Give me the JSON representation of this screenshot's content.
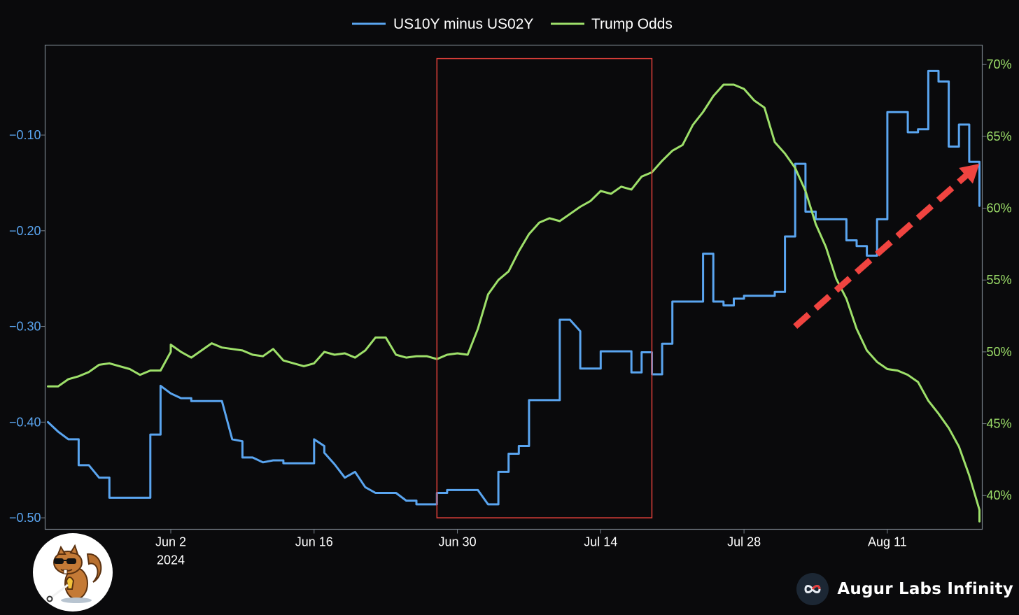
{
  "chart_data": {
    "type": "line",
    "title": "",
    "xlabel": "",
    "x_ticks": [
      {
        "date": "2024-06-02",
        "label": "Jun 2",
        "sublabel": "2024"
      },
      {
        "date": "2024-06-16",
        "label": "Jun 16",
        "sublabel": ""
      },
      {
        "date": "2024-06-30",
        "label": "Jun 30",
        "sublabel": ""
      },
      {
        "date": "2024-07-14",
        "label": "Jul 14",
        "sublabel": ""
      },
      {
        "date": "2024-07-28",
        "label": "Jul 28",
        "sublabel": ""
      },
      {
        "date": "2024-08-11",
        "label": "Aug 11",
        "sublabel": ""
      }
    ],
    "xlim": [
      "2024-05-21",
      "2024-08-20"
    ],
    "y_left": {
      "ticks": [
        -0.1,
        -0.2,
        -0.3,
        -0.4,
        -0.5
      ],
      "tick_labels": [
        "−0.10",
        "−0.20",
        "−0.30",
        "−0.40",
        "−0.50"
      ],
      "range": [
        -0.512,
        -0.006
      ],
      "color": "#5aa5f0"
    },
    "y_right": {
      "ticks": [
        40,
        45,
        50,
        55,
        60,
        65,
        70
      ],
      "tick_labels": [
        "40%",
        "45%",
        "50%",
        "55%",
        "60%",
        "65%",
        "70%"
      ],
      "range": [
        37.65,
        71.35
      ],
      "color": "#9ee06a"
    },
    "legend": {
      "placement": "top-center"
    },
    "grid": false,
    "series": [
      {
        "name": "US10Y minus US02Y",
        "axis": "left",
        "color": "#5aa5f0",
        "points": [
          [
            "2024-05-21",
            -0.4
          ],
          [
            "2024-05-22",
            -0.41
          ],
          [
            "2024-05-23",
            -0.418
          ],
          [
            "2024-05-24",
            -0.418
          ],
          [
            "2024-05-24",
            -0.445
          ],
          [
            "2024-05-25",
            -0.445
          ],
          [
            "2024-05-26",
            -0.458
          ],
          [
            "2024-05-27",
            -0.458
          ],
          [
            "2024-05-27",
            -0.479
          ],
          [
            "2024-05-31",
            -0.479
          ],
          [
            "2024-05-31",
            -0.413
          ],
          [
            "2024-06-01",
            -0.413
          ],
          [
            "2024-06-01",
            -0.362
          ],
          [
            "2024-06-02",
            -0.37
          ],
          [
            "2024-06-03",
            -0.375
          ],
          [
            "2024-06-04",
            -0.375
          ],
          [
            "2024-06-04",
            -0.378
          ],
          [
            "2024-06-07",
            -0.378
          ],
          [
            "2024-06-08",
            -0.418
          ],
          [
            "2024-06-09",
            -0.42
          ],
          [
            "2024-06-09",
            -0.437
          ],
          [
            "2024-06-10",
            -0.437
          ],
          [
            "2024-06-11",
            -0.442
          ],
          [
            "2024-06-12",
            -0.44
          ],
          [
            "2024-06-13",
            -0.44
          ],
          [
            "2024-06-13",
            -0.443
          ],
          [
            "2024-06-16",
            -0.443
          ],
          [
            "2024-06-16",
            -0.418
          ],
          [
            "2024-06-17",
            -0.425
          ],
          [
            "2024-06-17",
            -0.432
          ],
          [
            "2024-06-18",
            -0.444
          ],
          [
            "2024-06-19",
            -0.458
          ],
          [
            "2024-06-20",
            -0.452
          ],
          [
            "2024-06-21",
            -0.468
          ],
          [
            "2024-06-22",
            -0.474
          ],
          [
            "2024-06-24",
            -0.474
          ],
          [
            "2024-06-25",
            -0.482
          ],
          [
            "2024-06-26",
            -0.482
          ],
          [
            "2024-06-26",
            -0.486
          ],
          [
            "2024-06-28",
            -0.486
          ],
          [
            "2024-06-28",
            -0.474
          ],
          [
            "2024-06-29",
            -0.474
          ],
          [
            "2024-06-29",
            -0.471
          ],
          [
            "2024-07-02",
            -0.471
          ],
          [
            "2024-07-03",
            -0.486
          ],
          [
            "2024-07-04",
            -0.486
          ],
          [
            "2024-07-04",
            -0.452
          ],
          [
            "2024-07-05",
            -0.452
          ],
          [
            "2024-07-05",
            -0.433
          ],
          [
            "2024-07-06",
            -0.433
          ],
          [
            "2024-07-06",
            -0.425
          ],
          [
            "2024-07-07",
            -0.425
          ],
          [
            "2024-07-07",
            -0.377
          ],
          [
            "2024-07-10",
            -0.377
          ],
          [
            "2024-07-10",
            -0.293
          ],
          [
            "2024-07-11",
            -0.293
          ],
          [
            "2024-07-12",
            -0.305
          ],
          [
            "2024-07-12",
            -0.344
          ],
          [
            "2024-07-14",
            -0.344
          ],
          [
            "2024-07-14",
            -0.326
          ],
          [
            "2024-07-17",
            -0.326
          ],
          [
            "2024-07-17",
            -0.348
          ],
          [
            "2024-07-18",
            -0.348
          ],
          [
            "2024-07-18",
            -0.327
          ],
          [
            "2024-07-19",
            -0.327
          ],
          [
            "2024-07-19",
            -0.35
          ],
          [
            "2024-07-20",
            -0.35
          ],
          [
            "2024-07-20",
            -0.318
          ],
          [
            "2024-07-21",
            -0.318
          ],
          [
            "2024-07-21",
            -0.274
          ],
          [
            "2024-07-24",
            -0.274
          ],
          [
            "2024-07-24",
            -0.224
          ],
          [
            "2024-07-25",
            -0.224
          ],
          [
            "2024-07-25",
            -0.274
          ],
          [
            "2024-07-26",
            -0.274
          ],
          [
            "2024-07-26",
            -0.278
          ],
          [
            "2024-07-27",
            -0.278
          ],
          [
            "2024-07-27",
            -0.271
          ],
          [
            "2024-07-28",
            -0.271
          ],
          [
            "2024-07-28",
            -0.268
          ],
          [
            "2024-07-31",
            -0.268
          ],
          [
            "2024-07-31",
            -0.264
          ],
          [
            "2024-08-01",
            -0.264
          ],
          [
            "2024-08-01",
            -0.206
          ],
          [
            "2024-08-02",
            -0.206
          ],
          [
            "2024-08-02",
            -0.13
          ],
          [
            "2024-08-03",
            -0.13
          ],
          [
            "2024-08-03",
            -0.18
          ],
          [
            "2024-08-04",
            -0.18
          ],
          [
            "2024-08-04",
            -0.188
          ],
          [
            "2024-08-07",
            -0.188
          ],
          [
            "2024-08-07",
            -0.21
          ],
          [
            "2024-08-08",
            -0.21
          ],
          [
            "2024-08-08",
            -0.216
          ],
          [
            "2024-08-09",
            -0.216
          ],
          [
            "2024-08-09",
            -0.226
          ],
          [
            "2024-08-10",
            -0.226
          ],
          [
            "2024-08-10",
            -0.188
          ],
          [
            "2024-08-11",
            -0.188
          ],
          [
            "2024-08-11",
            -0.076
          ],
          [
            "2024-08-13",
            -0.076
          ],
          [
            "2024-08-13",
            -0.097
          ],
          [
            "2024-08-14",
            -0.097
          ],
          [
            "2024-08-14",
            -0.094
          ],
          [
            "2024-08-15",
            -0.094
          ],
          [
            "2024-08-15",
            -0.033
          ],
          [
            "2024-08-16",
            -0.033
          ],
          [
            "2024-08-16",
            -0.044
          ],
          [
            "2024-08-17",
            -0.044
          ],
          [
            "2024-08-17",
            -0.112
          ],
          [
            "2024-08-18",
            -0.112
          ],
          [
            "2024-08-18",
            -0.108
          ],
          [
            "2024-08-18",
            -0.089
          ],
          [
            "2024-08-19",
            -0.089
          ],
          [
            "2024-08-19",
            -0.128
          ],
          [
            "2024-08-20",
            -0.128
          ],
          [
            "2024-08-20",
            -0.174
          ],
          [
            "2024-08-20",
            -0.173
          ]
        ]
      },
      {
        "name": "Trump Odds",
        "axis": "right",
        "color": "#9ee06a",
        "points": [
          [
            "2024-05-21",
            47.6
          ],
          [
            "2024-05-22",
            47.6
          ],
          [
            "2024-05-23",
            48.1
          ],
          [
            "2024-05-24",
            48.3
          ],
          [
            "2024-05-25",
            48.6
          ],
          [
            "2024-05-26",
            49.1
          ],
          [
            "2024-05-27",
            49.2
          ],
          [
            "2024-05-28",
            49.0
          ],
          [
            "2024-05-29",
            48.8
          ],
          [
            "2024-05-30",
            48.4
          ],
          [
            "2024-05-31",
            48.7
          ],
          [
            "2024-06-01",
            48.7
          ],
          [
            "2024-06-02",
            50.0
          ],
          [
            "2024-06-02",
            50.5
          ],
          [
            "2024-06-03",
            50.0
          ],
          [
            "2024-06-04",
            49.6
          ],
          [
            "2024-06-05",
            50.1
          ],
          [
            "2024-06-06",
            50.6
          ],
          [
            "2024-06-07",
            50.3
          ],
          [
            "2024-06-08",
            50.2
          ],
          [
            "2024-06-09",
            50.1
          ],
          [
            "2024-06-10",
            49.8
          ],
          [
            "2024-06-11",
            49.7
          ],
          [
            "2024-06-12",
            50.2
          ],
          [
            "2024-06-13",
            49.4
          ],
          [
            "2024-06-14",
            49.2
          ],
          [
            "2024-06-15",
            49.0
          ],
          [
            "2024-06-16",
            49.2
          ],
          [
            "2024-06-17",
            50.0
          ],
          [
            "2024-06-18",
            49.8
          ],
          [
            "2024-06-19",
            49.9
          ],
          [
            "2024-06-20",
            49.6
          ],
          [
            "2024-06-21",
            50.1
          ],
          [
            "2024-06-22",
            51.0
          ],
          [
            "2024-06-23",
            51.0
          ],
          [
            "2024-06-24",
            49.8
          ],
          [
            "2024-06-25",
            49.6
          ],
          [
            "2024-06-26",
            49.7
          ],
          [
            "2024-06-27",
            49.7
          ],
          [
            "2024-06-28",
            49.5
          ],
          [
            "2024-06-29",
            49.8
          ],
          [
            "2024-06-30",
            49.9
          ],
          [
            "2024-07-01",
            49.8
          ],
          [
            "2024-07-02",
            51.6
          ],
          [
            "2024-07-03",
            54.0
          ],
          [
            "2024-07-04",
            55.0
          ],
          [
            "2024-07-05",
            55.6
          ],
          [
            "2024-07-06",
            57.0
          ],
          [
            "2024-07-07",
            58.2
          ],
          [
            "2024-07-08",
            59.0
          ],
          [
            "2024-07-09",
            59.3
          ],
          [
            "2024-07-10",
            59.1
          ],
          [
            "2024-07-11",
            59.6
          ],
          [
            "2024-07-12",
            60.1
          ],
          [
            "2024-07-13",
            60.5
          ],
          [
            "2024-07-14",
            61.2
          ],
          [
            "2024-07-15",
            61.0
          ],
          [
            "2024-07-16",
            61.5
          ],
          [
            "2024-07-17",
            61.3
          ],
          [
            "2024-07-18",
            62.2
          ],
          [
            "2024-07-19",
            62.5
          ],
          [
            "2024-07-20",
            63.3
          ],
          [
            "2024-07-21",
            64.0
          ],
          [
            "2024-07-22",
            64.4
          ],
          [
            "2024-07-23",
            65.8
          ],
          [
            "2024-07-24",
            66.7
          ],
          [
            "2024-07-25",
            67.8
          ],
          [
            "2024-07-26",
            68.6
          ],
          [
            "2024-07-27",
            68.6
          ],
          [
            "2024-07-28",
            68.3
          ],
          [
            "2024-07-29",
            67.5
          ],
          [
            "2024-07-30",
            67.0
          ],
          [
            "2024-07-31",
            64.6
          ],
          [
            "2024-08-01",
            63.8
          ],
          [
            "2024-08-02",
            62.8
          ],
          [
            "2024-08-03",
            61.2
          ],
          [
            "2024-08-04",
            58.9
          ],
          [
            "2024-08-05",
            57.3
          ],
          [
            "2024-08-06",
            55.1
          ],
          [
            "2024-08-07",
            53.7
          ],
          [
            "2024-08-08",
            51.6
          ],
          [
            "2024-08-09",
            50.1
          ],
          [
            "2024-08-10",
            49.3
          ],
          [
            "2024-08-11",
            48.8
          ],
          [
            "2024-08-12",
            48.7
          ],
          [
            "2024-08-13",
            48.4
          ],
          [
            "2024-08-14",
            47.9
          ],
          [
            "2024-08-15",
            46.6
          ],
          [
            "2024-08-16",
            45.7
          ],
          [
            "2024-08-17",
            44.7
          ],
          [
            "2024-08-18",
            43.4
          ],
          [
            "2024-08-19",
            41.4
          ],
          [
            "2024-08-20",
            39.0
          ],
          [
            "2024-08-20",
            38.2
          ]
        ]
      }
    ],
    "annotations": [
      {
        "kind": "box",
        "color": "#e0403a",
        "x_from": "2024-06-28",
        "x_to": "2024-07-19",
        "y_from": -0.5,
        "y_to": -0.02,
        "axis": "left"
      },
      {
        "kind": "dashed-arrow",
        "color": "#f04440",
        "from": {
          "x": "2024-08-02",
          "y": -0.3
        },
        "to": {
          "x": "2024-08-20",
          "y": -0.13
        },
        "axis": "left"
      }
    ]
  },
  "branding": {
    "name": "Augur Labs Infinity",
    "mascot": "squirrel-mascot",
    "logo_icon": "infinity-icon"
  }
}
